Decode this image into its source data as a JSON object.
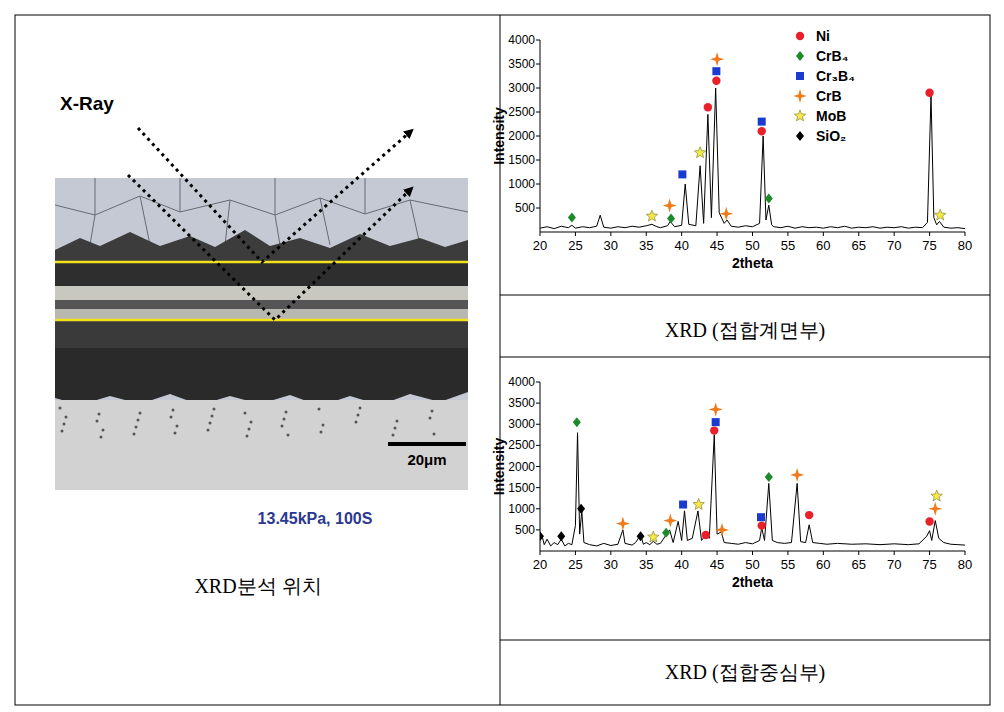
{
  "micrograph": {
    "label": "X-Ray",
    "scale_bar": "20μm",
    "condition": "13.45kPa, 100S",
    "caption": "XRD분석 위치"
  },
  "chart_data": [
    {
      "type": "line",
      "title": "XRD (접합계면부)",
      "x_label": "2theta",
      "y_label": "Intensity",
      "xlim": [
        20,
        80
      ],
      "ylim": [
        0,
        4000
      ],
      "xticks": [
        20,
        25,
        30,
        35,
        40,
        45,
        50,
        55,
        60,
        65,
        70,
        75,
        80
      ],
      "yticks": [
        500,
        1000,
        1500,
        2000,
        2500,
        3000,
        3500,
        4000
      ],
      "legend": "top-right",
      "series": [
        {
          "type": "line",
          "color": "#000000",
          "x": [
            20,
            21,
            22,
            23,
            24,
            24.5,
            25,
            26,
            27,
            28,
            28.5,
            29,
            30,
            31,
            32,
            33,
            34,
            35,
            35.8,
            36.5,
            37,
            38,
            38.4,
            39,
            40,
            40.5,
            41,
            42,
            42.6,
            43.1,
            43.7,
            44.2,
            44.8,
            45.3,
            46,
            46.4,
            47,
            48,
            49,
            50,
            51,
            51.5,
            51.9,
            52.3,
            52.7,
            53,
            54,
            55,
            56,
            57,
            58,
            59,
            60,
            61,
            62,
            63,
            64,
            65,
            66,
            67,
            68,
            69,
            70,
            71,
            72,
            73,
            74,
            74.7,
            75.2,
            75.6,
            76,
            76.4,
            77,
            78,
            79,
            80
          ],
          "values": [
            80,
            110,
            70,
            120,
            90,
            140,
            80,
            110,
            90,
            120,
            350,
            100,
            80,
            110,
            90,
            120,
            100,
            130,
            160,
            110,
            90,
            130,
            220,
            110,
            140,
            1000,
            160,
            130,
            1380,
            180,
            2450,
            300,
            3000,
            400,
            180,
            250,
            120,
            100,
            130,
            110,
            180,
            2000,
            250,
            560,
            150,
            110,
            90,
            120,
            80,
            110,
            90,
            100,
            80,
            110,
            90,
            120,
            80,
            100,
            90,
            110,
            80,
            100,
            90,
            110,
            80,
            100,
            90,
            200,
            2850,
            300,
            150,
            220,
            100,
            80,
            90,
            70
          ]
        },
        {
          "type": "scatter",
          "name": "Ni",
          "color": "#e8202a",
          "marker": "circle",
          "x": [
            43.7,
            44.9,
            51.3,
            75
          ],
          "values": [
            2600,
            3150,
            2100,
            2900
          ]
        },
        {
          "type": "scatter",
          "name": "CrB₄",
          "color": "#1a8a2a",
          "marker": "diamond",
          "x": [
            24.5,
            38.5,
            52.3
          ],
          "values": [
            300,
            280,
            700
          ]
        },
        {
          "type": "scatter",
          "name": "Cr₃B₄",
          "color": "#1a3ad0",
          "marker": "square",
          "x": [
            40.1,
            44.9,
            51.3
          ],
          "values": [
            1200,
            3350,
            2300
          ]
        },
        {
          "type": "scatter",
          "name": "CrB",
          "color": "#f07a1a",
          "marker": "plus",
          "x": [
            38.3,
            45,
            46.3
          ],
          "values": [
            550,
            3600,
            380
          ]
        },
        {
          "type": "scatter",
          "name": "MoB",
          "color": "#f5e84a",
          "marker": "star",
          "x": [
            35.8,
            42.6,
            76.5
          ],
          "values": [
            330,
            1650,
            350
          ]
        },
        {
          "type": "scatter",
          "name": "SiO₂",
          "color": "#000000",
          "marker": "diamond",
          "x": [],
          "values": []
        }
      ]
    },
    {
      "type": "line",
      "title": "XRD (접합중심부)",
      "x_label": "2theta",
      "y_label": "Intensity",
      "xlim": [
        20,
        80
      ],
      "ylim": [
        0,
        4000
      ],
      "xticks": [
        20,
        25,
        30,
        35,
        40,
        45,
        50,
        55,
        60,
        65,
        70,
        75,
        80
      ],
      "yticks": [
        500,
        1000,
        1500,
        2000,
        2500,
        3000,
        3500,
        4000
      ],
      "series": [
        {
          "type": "line",
          "color": "#000000",
          "x": [
            20,
            20.3,
            20.6,
            21,
            21.5,
            22,
            22.5,
            23,
            23.5,
            24,
            24.5,
            25,
            25.3,
            25.6,
            25.9,
            26.2,
            27,
            28,
            29,
            30,
            31,
            31.7,
            32,
            33,
            33.5,
            34.2,
            34.6,
            35,
            35.5,
            36,
            36.5,
            37,
            37.8,
            38.3,
            38.8,
            39.5,
            40,
            40.4,
            40.8,
            41.5,
            42.3,
            42.8,
            43.4,
            43.9,
            44.6,
            45,
            45.6,
            46,
            47,
            48,
            49,
            50,
            51,
            51.3,
            51.7,
            52.3,
            52.8,
            53.5,
            54.5,
            55.5,
            56.3,
            56.8,
            57.5,
            58,
            58.5,
            59.5,
            60.5,
            62,
            64,
            66,
            68,
            70,
            72,
            73.5,
            74.6,
            75,
            75.3,
            75.8,
            76.3,
            77,
            78,
            79,
            80
          ],
          "values": [
            250,
            350,
            150,
            280,
            120,
            200,
            150,
            280,
            120,
            180,
            150,
            600,
            2800,
            400,
            950,
            200,
            150,
            120,
            180,
            130,
            160,
            500,
            180,
            140,
            200,
            380,
            160,
            200,
            150,
            230,
            160,
            180,
            380,
            500,
            200,
            700,
            250,
            950,
            250,
            300,
            950,
            250,
            380,
            300,
            2750,
            400,
            450,
            200,
            180,
            160,
            200,
            170,
            250,
            550,
            250,
            1600,
            250,
            200,
            180,
            200,
            1600,
            220,
            200,
            620,
            200,
            180,
            160,
            180,
            160,
            170,
            150,
            170,
            150,
            170,
            350,
            480,
            250,
            720,
            300,
            200,
            160,
            150,
            140
          ]
        },
        {
          "type": "scatter",
          "color": "#e8202a",
          "marker": "circle",
          "x": [
            43.4,
            44.6,
            51.3,
            58,
            75
          ],
          "values": [
            380,
            2850,
            600,
            850,
            700
          ]
        },
        {
          "type": "scatter",
          "color": "#1a8a2a",
          "marker": "diamond",
          "x": [
            25.2,
            37.8,
            52.3
          ],
          "values": [
            3050,
            430,
            1750
          ]
        },
        {
          "type": "scatter",
          "color": "#1a3ad0",
          "marker": "square",
          "x": [
            40.2,
            44.8,
            51.2
          ],
          "values": [
            1100,
            3050,
            800
          ]
        },
        {
          "type": "scatter",
          "color": "#f07a1a",
          "marker": "plus",
          "x": [
            31.7,
            38.4,
            44.8,
            45.7,
            56.3,
            75.8
          ],
          "values": [
            650,
            720,
            3350,
            500,
            1800,
            1000
          ]
        },
        {
          "type": "scatter",
          "color": "#f5e84a",
          "marker": "star",
          "x": [
            36,
            42.4,
            76
          ],
          "values": [
            330,
            1100,
            1300
          ]
        },
        {
          "type": "scatter",
          "color": "#000000",
          "marker": "diamond",
          "x": [
            20,
            23,
            25.8,
            34.2
          ],
          "values": [
            350,
            350,
            1000,
            350
          ]
        }
      ]
    }
  ]
}
